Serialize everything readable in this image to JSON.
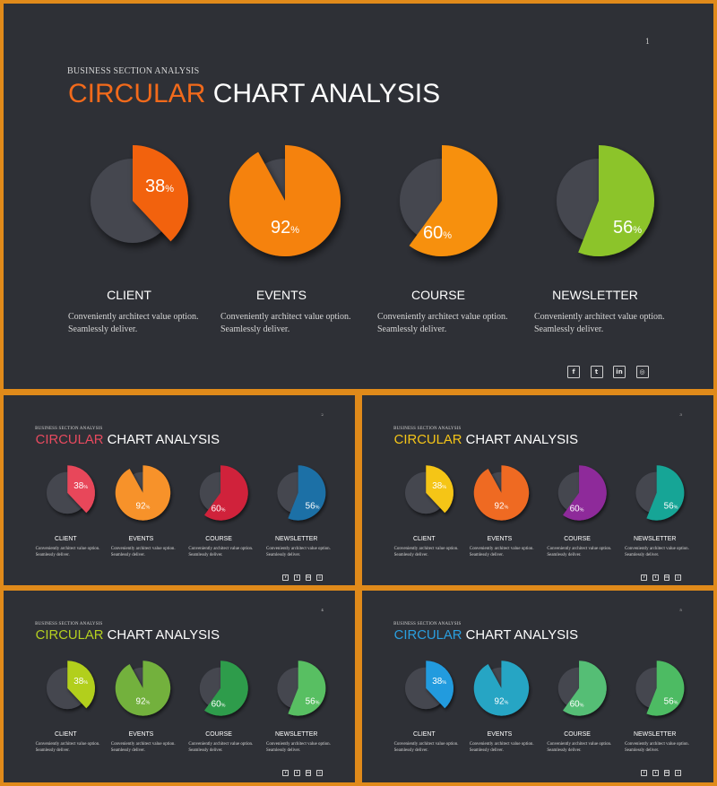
{
  "common": {
    "kicker": "BUSINESS SECTION ANALYSIS",
    "title_accent": "CIRCULAR",
    "title_rest": " CHART ANALYSIS",
    "description": [
      "Conveniently architect value option.",
      "Seamlessly deliver."
    ],
    "percent_symbol": "%",
    "social_icons": [
      {
        "name": "facebook-icon",
        "glyph": "f"
      },
      {
        "name": "twitter-icon",
        "glyph": "t"
      },
      {
        "name": "linkedin-icon",
        "glyph": "in"
      },
      {
        "name": "instagram-icon",
        "glyph": "◎"
      }
    ]
  },
  "colors": {
    "background_slide": "#2e3036",
    "base_disc": "#44464f",
    "border": "#e08a1a"
  },
  "chart_data": [
    {
      "type": "pie",
      "slide_number": "1",
      "title_color": "#f26a1b",
      "categories": [
        "CLIENT",
        "EVENTS",
        "COURSE",
        "NEWSLETTER"
      ],
      "values": [
        38,
        92,
        60,
        56
      ],
      "colors": [
        "#f2620f",
        "#f5820f",
        "#f7900a",
        "#8cc42a"
      ]
    },
    {
      "type": "pie",
      "slide_number": "2",
      "title_color": "#e84a5f",
      "categories": [
        "CLIENT",
        "EVENTS",
        "COURSE",
        "NEWSLETTER"
      ],
      "values": [
        38,
        92,
        60,
        56
      ],
      "colors": [
        "#e8475a",
        "#f7922a",
        "#d0223a",
        "#1e6fa6"
      ]
    },
    {
      "type": "pie",
      "slide_number": "3",
      "title_color": "#f5c518",
      "categories": [
        "CLIENT",
        "EVENTS",
        "COURSE",
        "NEWSLETTER"
      ],
      "values": [
        38,
        92,
        60,
        56
      ],
      "colors": [
        "#f5c518",
        "#ef6a24",
        "#8e2a9a",
        "#15a596"
      ]
    },
    {
      "type": "pie",
      "slide_number": "4",
      "title_color": "#b5d020",
      "categories": [
        "CLIENT",
        "EVENTS",
        "COURSE",
        "NEWSLETTER"
      ],
      "values": [
        38,
        92,
        60,
        56
      ],
      "colors": [
        "#b2cf1f",
        "#73b13c",
        "#2e9c4b",
        "#59bf62"
      ]
    },
    {
      "type": "pie",
      "slide_number": "5",
      "title_color": "#2a9fe0",
      "categories": [
        "CLIENT",
        "EVENTS",
        "COURSE",
        "NEWSLETTER"
      ],
      "values": [
        38,
        92,
        60,
        56
      ],
      "colors": [
        "#229bde",
        "#26a5c4",
        "#55be75",
        "#4dbb63"
      ]
    }
  ]
}
